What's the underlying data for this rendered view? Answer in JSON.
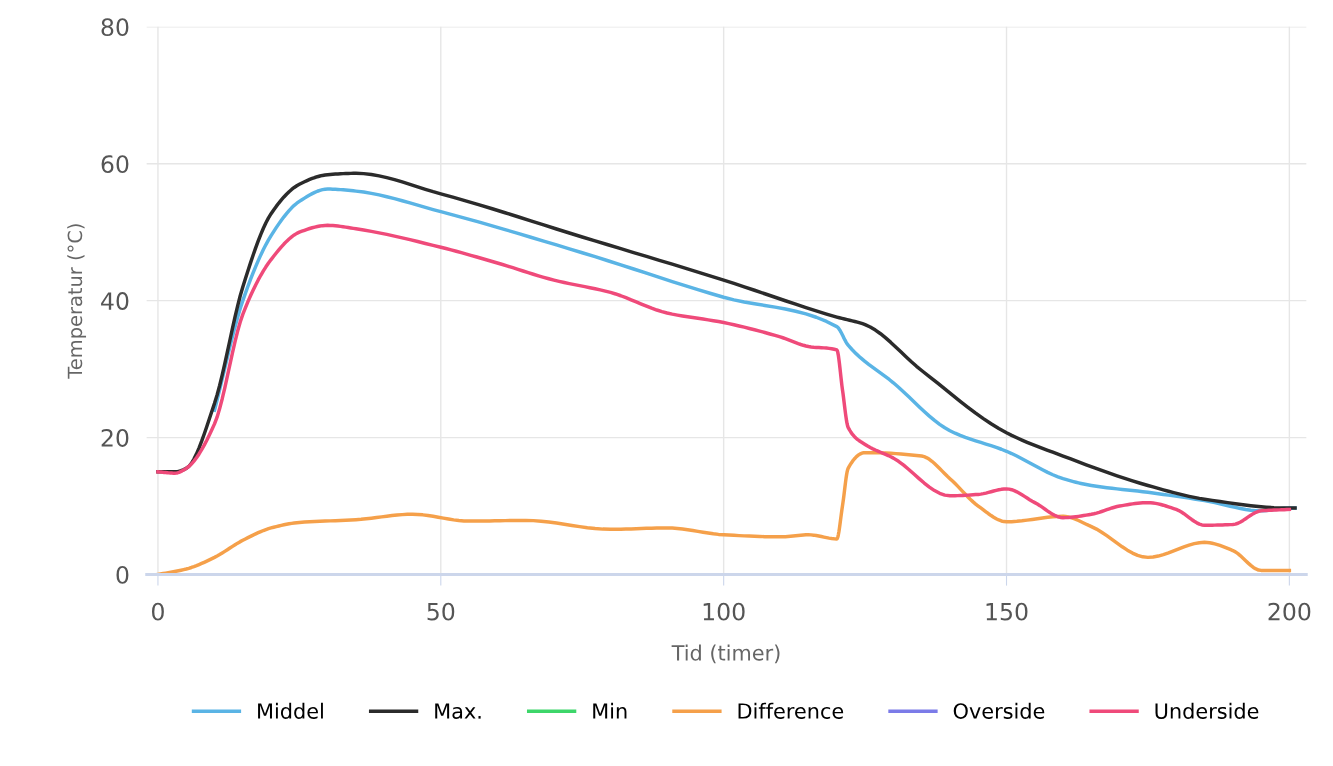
{
  "chart_data": {
    "type": "line",
    "xlabel": "Tid (timer)",
    "ylabel": "Temperatur (°C)",
    "xlim": [
      -2,
      203
    ],
    "xticks": [
      0,
      50,
      100,
      150,
      200
    ],
    "ylim": [
      0,
      80
    ],
    "yticks": [
      0,
      20,
      40,
      60,
      80
    ],
    "grid": true,
    "legend": "bottom",
    "series": [
      {
        "name": "Middel",
        "color": "#5ab4e5",
        "x": [
          10,
          15,
          20,
          25,
          30,
          35,
          50,
          75,
          100,
          120,
          122,
          130,
          140,
          150,
          160,
          165,
          175,
          185,
          195,
          200,
          201
        ],
        "values": [
          24,
          40,
          49.5,
          54.5,
          56.3,
          56,
          53,
          47,
          40.5,
          36.2,
          33.5,
          28,
          21,
          18,
          14,
          13,
          12,
          10.8,
          9.3,
          9.7,
          9.7
        ]
      },
      {
        "name": "Max.",
        "color": "#2b2b2b",
        "x": [
          0,
          3,
          5,
          10,
          15,
          20,
          25,
          30,
          35,
          50,
          75,
          100,
          120,
          125,
          135,
          150,
          160,
          175,
          185,
          200,
          201
        ],
        "values": [
          15,
          15,
          15.5,
          25,
          42,
          52.7,
          57,
          58.4,
          58.6,
          55.6,
          49.3,
          43,
          37.6,
          36.5,
          29.8,
          20.7,
          17.3,
          13,
          11,
          9.7,
          9.7
        ]
      },
      {
        "name": "Min",
        "color": "#3dd66a"
      },
      {
        "name": "Difference",
        "color": "#f5a04a",
        "x": [
          0,
          5,
          10,
          15,
          20,
          25,
          35,
          45,
          55,
          65,
          80,
          90,
          100,
          110,
          115,
          120,
          121,
          122,
          125,
          135,
          140,
          145,
          150,
          160,
          165,
          175,
          185,
          190,
          195,
          200
        ],
        "values": [
          0,
          0.8,
          2.5,
          5,
          6.8,
          7.6,
          8,
          8.8,
          7.8,
          7.9,
          6.6,
          6.8,
          5.8,
          5.5,
          5.8,
          5.2,
          10,
          15.5,
          17.8,
          17.3,
          14,
          10,
          7.7,
          8.5,
          7,
          2.5,
          4.7,
          3.5,
          0.6,
          0.6
        ]
      },
      {
        "name": "Overside",
        "color": "#7b7be8"
      },
      {
        "name": "Underside",
        "color": "#ef4a7a",
        "x": [
          0,
          3,
          5,
          10,
          15,
          20,
          25,
          30,
          35,
          50,
          60,
          70,
          80,
          90,
          100,
          110,
          115,
          120,
          121,
          122,
          125,
          130,
          140,
          145,
          150,
          155,
          160,
          165,
          170,
          175,
          180,
          185,
          190,
          195,
          200
        ],
        "values": [
          15,
          14.8,
          15.5,
          22,
          38,
          46,
          50,
          51,
          50.5,
          47.8,
          45.5,
          43,
          41.2,
          38.2,
          36.8,
          34.7,
          33.3,
          32.8,
          27,
          21.5,
          19,
          17,
          11.5,
          11.7,
          12.5,
          10.5,
          8.3,
          8.8,
          10,
          10.5,
          9.5,
          7.2,
          7.3,
          9.3,
          9.5
        ]
      }
    ]
  }
}
